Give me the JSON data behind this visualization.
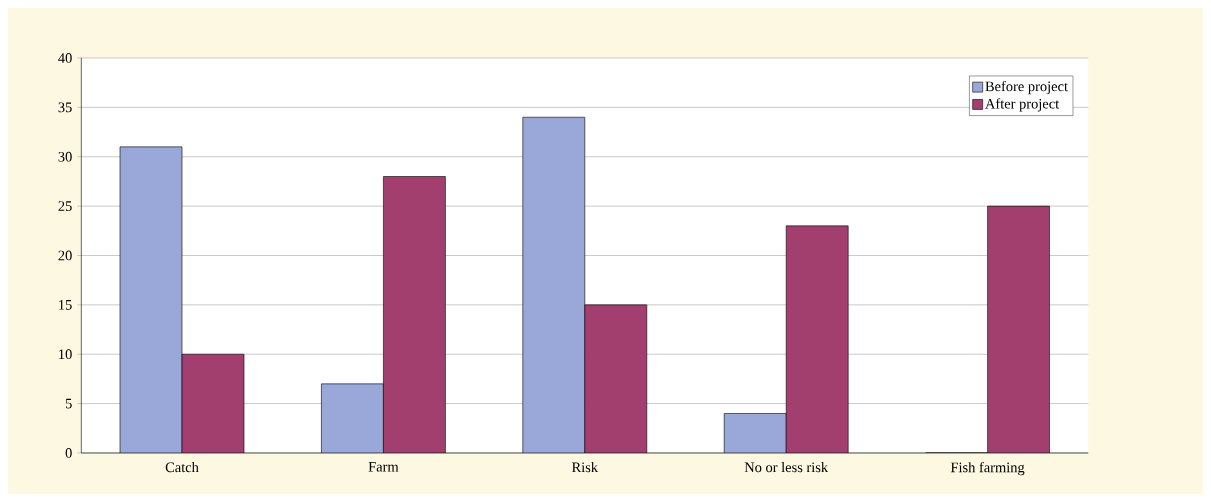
{
  "chart_data": {
    "type": "bar",
    "categories": [
      "Catch",
      "Farm",
      "Risk",
      "No or less risk",
      "Fish farming"
    ],
    "series": [
      {
        "name": "Before project",
        "color": "#99a8d8",
        "values": [
          31,
          7,
          34,
          4,
          0
        ]
      },
      {
        "name": "After project",
        "color": "#a33f6f",
        "values": [
          10,
          28,
          15,
          23,
          25
        ]
      }
    ],
    "ylim": [
      0,
      40
    ],
    "yticks": [
      0,
      5,
      10,
      15,
      20,
      25,
      30,
      35,
      40
    ],
    "grid": "y",
    "legend": "top right"
  }
}
